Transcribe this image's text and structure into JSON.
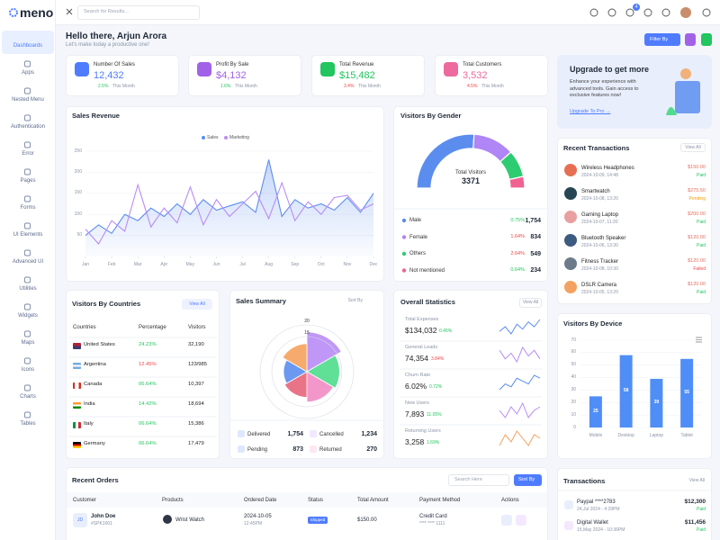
{
  "sidebar": {
    "logo": "meno",
    "nav": [
      "Dashboards",
      "Apps",
      "Nested Menu",
      "Authentication",
      "Error",
      "Pages",
      "Forms",
      "UI Elements",
      "Advanced UI",
      "Utilities",
      "Widgets",
      "Maps",
      "Icons",
      "Charts",
      "Tables"
    ]
  },
  "topbar": {
    "search_placeholder": "Search for Results...",
    "cart_badge": "4"
  },
  "header": {
    "greeting": "Hello there, Arjun Arora",
    "subtitle": "Let's make today a productive one!",
    "filter_button": "Filter By"
  },
  "stats": [
    {
      "label": "Number Of Sales",
      "value": "12,432",
      "change": "2.5%",
      "trend": "up",
      "period": "This Month",
      "color": "#4f7cff"
    },
    {
      "label": "Profit By Sale",
      "value": "$4,132",
      "change": "1.6%",
      "trend": "up",
      "period": "This Month",
      "color": "#a162e8"
    },
    {
      "label": "Total Revenue",
      "value": "$15,482",
      "change": "3.4%",
      "trend": "down",
      "period": "This Month",
      "color": "#22c55e"
    },
    {
      "label": "Total Customers",
      "value": "3,532",
      "change": "4.5%",
      "trend": "down",
      "period": "This Month",
      "color": "#ec6a9d"
    }
  ],
  "upgrade": {
    "title": "Upgrade to get more",
    "text": "Enhance your experience with advanced tools. Gain access to exclusive features now!",
    "link": "Upgrade To Pro →"
  },
  "sales_revenue": {
    "title": "Sales Revenue",
    "type": "line",
    "grid": true,
    "x": [
      0,
      0.5,
      1,
      1.5,
      2,
      2.5,
      3,
      3.5,
      4,
      4.5,
      5,
      5.5,
      6,
      6.5,
      7,
      7.5,
      8,
      8.5,
      9,
      9.5,
      10,
      10.5,
      11
    ],
    "xlim": [
      0,
      11
    ],
    "xticks": [
      {
        "value": 0,
        "label": "Jan"
      },
      {
        "value": 1,
        "label": "Feb"
      },
      {
        "value": 2,
        "label": "Mar"
      },
      {
        "value": 3,
        "label": "Apr"
      },
      {
        "value": 4,
        "label": "May"
      },
      {
        "value": 5,
        "label": "Jun"
      },
      {
        "value": 6,
        "label": "Jul"
      },
      {
        "value": 7,
        "label": "Aug"
      },
      {
        "value": 8,
        "label": "Sep"
      },
      {
        "value": 9,
        "label": "Oct"
      },
      {
        "value": 10,
        "label": "Nov"
      },
      {
        "value": 11,
        "label": "Dec"
      }
    ],
    "ylim": [
      0,
      250
    ],
    "yticks": [
      50,
      100,
      150,
      200,
      250
    ],
    "series": [
      {
        "name": "Sales",
        "color": "#5b8def",
        "fill": true,
        "values": [
          50,
          75,
          55,
          100,
          85,
          115,
          95,
          125,
          100,
          135,
          110,
          120,
          130,
          105,
          230,
          95,
          135,
          115,
          125,
          110,
          140,
          105,
          150
        ]
      },
      {
        "name": "Marketing",
        "color": "#b98cf5",
        "fill": false,
        "values": [
          65,
          30,
          85,
          60,
          170,
          70,
          115,
          80,
          165,
          75,
          135,
          95,
          125,
          155,
          90,
          175,
          85,
          130,
          100,
          140,
          145,
          110,
          125
        ]
      }
    ]
  },
  "visitors_by_gender": {
    "title": "Visitors By Gender",
    "type": "donut",
    "center_label": "Total Visitors",
    "total": 3371,
    "categories": [
      "Male",
      "Female",
      "Others",
      "Not mentioned"
    ],
    "values": [
      1754,
      834,
      549,
      234
    ],
    "value_labels": [
      "1,754",
      "834",
      "549",
      "234"
    ],
    "changes": [
      "0.75%",
      "1.64%",
      "2.64%",
      "0.64%"
    ],
    "trends": [
      "up",
      "down",
      "down",
      "up"
    ],
    "colors": [
      "#5b8def",
      "#b085f5",
      "#2ecc71",
      "#f06292"
    ]
  },
  "visitors_by_countries": {
    "title": "Visitors By Countries",
    "view_all": "View All",
    "columns": [
      "Countries",
      "Percentage",
      "Visitors"
    ],
    "rows": [
      [
        "United States",
        "24.23%",
        "32,190"
      ],
      [
        "Argentina",
        "12.45%",
        "123/985"
      ],
      [
        "Canada",
        "06.64%",
        "10,397"
      ],
      [
        "India",
        "14.42%",
        "18,694"
      ],
      [
        "Italy",
        "06.64%",
        "15,386"
      ],
      [
        "Germany",
        "06.64%",
        "17,479"
      ]
    ],
    "trends": [
      "up",
      "down",
      "up",
      "up",
      "up",
      "up"
    ]
  },
  "sales_summary": {
    "title": "Sales Summary",
    "sort": "Sort By",
    "type": "polar",
    "values": [
      17,
      14,
      13,
      11,
      10,
      12
    ],
    "colors": [
      "#b98cf5",
      "#4fdc8c",
      "#f28cc4",
      "#e8657a",
      "#5b8def",
      "#f5a25d"
    ],
    "rlim": [
      0,
      20
    ],
    "rticks": [
      15,
      20
    ],
    "items": [
      {
        "label": "Delivered",
        "value": "1,754"
      },
      {
        "label": "Cancelled",
        "value": "1,234"
      },
      {
        "label": "Pending",
        "value": "873"
      },
      {
        "label": "Returned",
        "value": "270"
      }
    ]
  },
  "overall_statistics": {
    "title": "Overall Statistics",
    "view_all": "View All",
    "rows": [
      {
        "label": "Total Expenses",
        "value": "$134,032",
        "change": "0.45%",
        "trend": "up",
        "color": "#5b8def",
        "spark": [
          6,
          8,
          5,
          9,
          7,
          10,
          8,
          11
        ]
      },
      {
        "label": "General Leads",
        "value": "74,354",
        "change": "3.84%",
        "trend": "down",
        "color": "#b98cf5",
        "spark": [
          9,
          6,
          8,
          5,
          10,
          7,
          9,
          6
        ]
      },
      {
        "label": "Churn Rate",
        "value": "6.02%",
        "change": "0.72%",
        "trend": "up",
        "color": "#5b8def",
        "spark": [
          5,
          7,
          6,
          9,
          8,
          7,
          10,
          9
        ]
      },
      {
        "label": "New Users",
        "value": "7,893",
        "change": "11.05%",
        "trend": "up",
        "color": "#b98cf5",
        "spark": [
          8,
          6,
          9,
          7,
          10,
          6,
          8,
          9
        ]
      },
      {
        "label": "Returning Users",
        "value": "3,258",
        "change": "1.69%",
        "trend": "up",
        "color": "#f5a25d",
        "spark": [
          6,
          9,
          7,
          10,
          8,
          6,
          9,
          8
        ]
      }
    ]
  },
  "recent_transactions": {
    "title": "Recent Transactions",
    "view_all": "View All",
    "rows": [
      {
        "name": "Wireless Headphones",
        "date": "2024-10-09, 14:48",
        "amount": "$150.00",
        "status": "Paid"
      },
      {
        "name": "Smartwatch",
        "date": "2024-10-08, 13:20",
        "amount": "$275.50",
        "status": "Pending"
      },
      {
        "name": "Gaming Laptop",
        "date": "2024-10-07, 11:30",
        "amount": "$200.00",
        "status": "Paid"
      },
      {
        "name": "Bluetooth Speaker",
        "date": "2024-10-06, 13:30",
        "amount": "$120.00",
        "status": "Paid"
      },
      {
        "name": "Fitness Tracker",
        "date": "2024-10-08, 10:30",
        "amount": "$120.00",
        "status": "Failed"
      },
      {
        "name": "DSLR Camera",
        "date": "2024-10-05, 13:20",
        "amount": "$120.00",
        "status": "Paid"
      }
    ]
  },
  "visitors_by_device": {
    "title": "Visitors By Device",
    "type": "bar",
    "categories": [
      "Mobile",
      "Desktop",
      "Laptop",
      "Tablet"
    ],
    "values": [
      25,
      58,
      39,
      55
    ],
    "color": "#4f8ef7",
    "ylim": [
      0,
      70
    ],
    "yticks": [
      0,
      10,
      20,
      30,
      40,
      50,
      60,
      70
    ],
    "grid": true
  },
  "recent_orders": {
    "title": "Recent Orders",
    "search_placeholder": "Search Here",
    "sort": "Sort By",
    "columns": [
      "Customer",
      "Products",
      "Ordered Date",
      "Status",
      "Total Amount",
      "Payment Method",
      "Actions"
    ],
    "rows": [
      {
        "initials": "JD",
        "customer": "John Doe",
        "id": "#SPK1001",
        "product": "Wrist Watch",
        "date": "2024-10-05",
        "time": "12:45PM",
        "status": "Shipped",
        "amount": "$150.00",
        "payment": "Credit Card",
        "card": "**** **** 1111"
      }
    ]
  },
  "transactions": {
    "title": "Transactions",
    "view_all": "View All",
    "rows": [
      {
        "name": "Paypal ****2783",
        "date": "24,Jul 2024 - 4:29PM",
        "amount": "$12,300",
        "status": "Paid"
      },
      {
        "name": "Digital Wallet",
        "date": "15,May 2024 - 10:36PM",
        "amount": "$11,456",
        "status": "Paid"
      }
    ]
  }
}
